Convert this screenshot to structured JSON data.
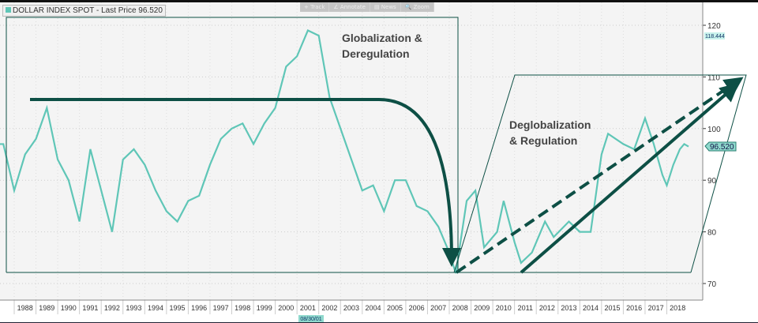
{
  "legend": {
    "label": "DOLLAR INDEX SPOT - Last Price 96.520",
    "color": "#5fc6b7"
  },
  "toolbar": [
    "+ Track",
    "∠ Annotate",
    "▤ News",
    "🔍 Zoom"
  ],
  "annotations": {
    "left": "Globalization & Deregulation",
    "right": "Deglobalization & Regulation"
  },
  "last_price_label": "96.520",
  "high_label": "118.444",
  "cursor_date": "08/30/01",
  "chart_data": {
    "type": "line",
    "title": "DOLLAR INDEX SPOT - Last Price 96.520",
    "ylim": [
      68,
      124
    ],
    "yticks": [
      70,
      80,
      90,
      100,
      110,
      120
    ],
    "xticks": [
      "1988",
      "1989",
      "1990",
      "1991",
      "1992",
      "1993",
      "1994",
      "1995",
      "1996",
      "1997",
      "1998",
      "1999",
      "2000",
      "2001",
      "2002",
      "2003",
      "2004",
      "2005",
      "2006",
      "2007",
      "2008",
      "2009",
      "2010",
      "2011",
      "2012",
      "2013",
      "2014",
      "2015",
      "2016",
      "2017",
      "2018"
    ],
    "grid": true,
    "axis_position": "right",
    "series": [
      {
        "name": "DOLLAR INDEX SPOT",
        "color": "#5fc6b7",
        "x": [
          1987.0,
          1987.5,
          1988.0,
          1988.5,
          1989.0,
          1989.5,
          1990.0,
          1990.5,
          1991.0,
          1991.5,
          1992.0,
          1992.5,
          1993.0,
          1993.5,
          1994.0,
          1994.5,
          1995.0,
          1995.5,
          1996.0,
          1996.5,
          1997.0,
          1997.5,
          1998.0,
          1998.5,
          1999.0,
          1999.5,
          2000.0,
          2000.5,
          2001.0,
          2001.5,
          2002.0,
          2002.5,
          2003.0,
          2003.5,
          2004.0,
          2004.5,
          2005.0,
          2005.5,
          2006.0,
          2006.5,
          2007.0,
          2007.5,
          2008.0,
          2008.3,
          2008.8,
          2009.2,
          2009.6,
          2010.2,
          2010.5,
          2011.0,
          2011.3,
          2011.8,
          2012.4,
          2012.8,
          2013.5,
          2014.0,
          2014.5,
          2015.0,
          2015.3,
          2016.0,
          2016.5,
          2017.0,
          2017.4,
          2017.8,
          2018.0,
          2018.3,
          2018.6,
          2018.8,
          2019.0
        ],
        "y": [
          97,
          97,
          88,
          95,
          98,
          104,
          94,
          90,
          82,
          96,
          88,
          80,
          94,
          96,
          93,
          88,
          84,
          82,
          86,
          87,
          93,
          98,
          100,
          101,
          97,
          101,
          104,
          112,
          114,
          119,
          118,
          106,
          100,
          94,
          88,
          89,
          84,
          90,
          90,
          85,
          84,
          81,
          76,
          72,
          86,
          88,
          77,
          80,
          86,
          78,
          74,
          76,
          82,
          79,
          82,
          80,
          80,
          95,
          99,
          97,
          96,
          102,
          97,
          91,
          89,
          93,
          96,
          97,
          96.52
        ]
      }
    ]
  },
  "colors": {
    "annotation": "#0d4f45",
    "plot_bg": "#f4f4f4"
  }
}
